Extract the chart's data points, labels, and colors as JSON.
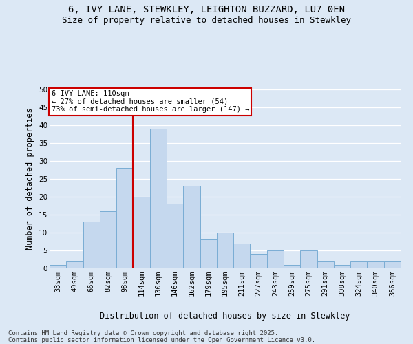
{
  "title": "6, IVY LANE, STEWKLEY, LEIGHTON BUZZARD, LU7 0EN",
  "subtitle": "Size of property relative to detached houses in Stewkley",
  "xlabel": "Distribution of detached houses by size in Stewkley",
  "ylabel": "Number of detached properties",
  "footnote": "Contains HM Land Registry data © Crown copyright and database right 2025.\nContains public sector information licensed under the Open Government Licence v3.0.",
  "bar_labels": [
    "33sqm",
    "49sqm",
    "66sqm",
    "82sqm",
    "98sqm",
    "114sqm",
    "130sqm",
    "146sqm",
    "162sqm",
    "179sqm",
    "195sqm",
    "211sqm",
    "227sqm",
    "243sqm",
    "259sqm",
    "275sqm",
    "291sqm",
    "308sqm",
    "324sqm",
    "340sqm",
    "356sqm"
  ],
  "bar_values": [
    1,
    2,
    13,
    16,
    28,
    20,
    39,
    18,
    23,
    8,
    10,
    7,
    4,
    5,
    1,
    5,
    2,
    1,
    2,
    2,
    2
  ],
  "bar_color": "#c5d8ee",
  "bar_edge_color": "#7aadd4",
  "vline_color": "#cc0000",
  "annotation_text": "6 IVY LANE: 110sqm\n← 27% of detached houses are smaller (54)\n73% of semi-detached houses are larger (147) →",
  "annotation_box_color": "white",
  "annotation_box_edge": "#cc0000",
  "ylim": [
    0,
    50
  ],
  "yticks": [
    0,
    5,
    10,
    15,
    20,
    25,
    30,
    35,
    40,
    45,
    50
  ],
  "bg_color": "#dce8f5",
  "plot_bg_color": "#dce8f5",
  "grid_color": "white",
  "title_fontsize": 10,
  "subtitle_fontsize": 9,
  "label_fontsize": 8.5,
  "tick_fontsize": 7.5,
  "footnote_fontsize": 6.5,
  "annotation_fontsize": 7.5
}
